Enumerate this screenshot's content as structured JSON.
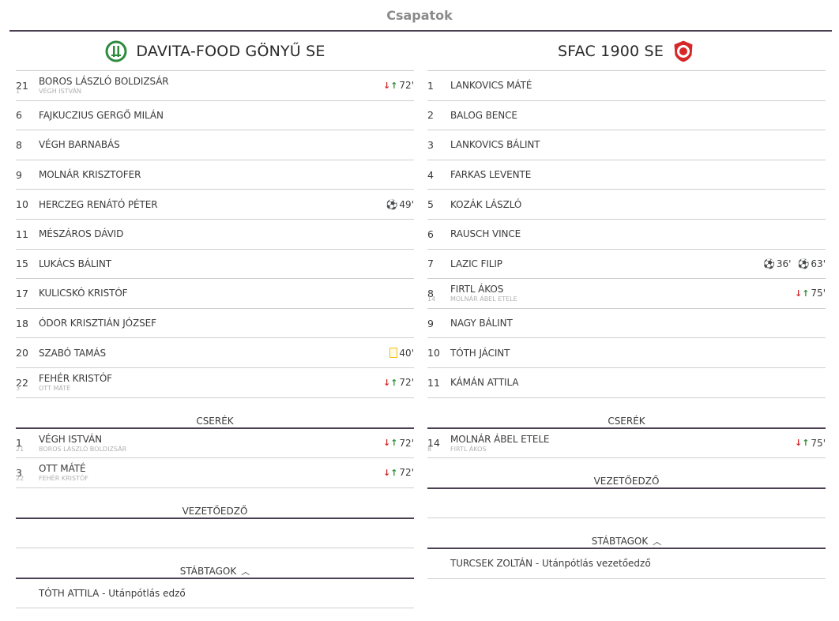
{
  "page_title": "Csapatok",
  "home": {
    "name": "DAVITA-FOOD GÖNYŰ SE",
    "lineup": [
      {
        "num": "21",
        "name": "BOROS LÁSZLÓ BOLDIZSÁR",
        "sub_num": "1",
        "sub_name": "VÉGH ISTVÁN",
        "events": [
          {
            "type": "sub",
            "minute": "72'"
          }
        ]
      },
      {
        "num": "6",
        "name": "FAJKUCZIUS GERGŐ MILÁN",
        "events": []
      },
      {
        "num": "8",
        "name": "VÉGH BARNABÁS",
        "events": []
      },
      {
        "num": "9",
        "name": "MOLNÁR KRISZTOFER",
        "events": []
      },
      {
        "num": "10",
        "name": "HERCZEG RENÁTÓ PÉTER",
        "events": [
          {
            "type": "goal",
            "minute": "49'"
          }
        ]
      },
      {
        "num": "11",
        "name": "MÉSZÁROS DÁVID",
        "events": []
      },
      {
        "num": "15",
        "name": "LUKÁCS BÁLINT",
        "events": []
      },
      {
        "num": "17",
        "name": "KULICSKÓ KRISTÓF",
        "events": []
      },
      {
        "num": "18",
        "name": "ÓDOR KRISZTIÁN JÓZSEF",
        "events": []
      },
      {
        "num": "20",
        "name": "SZABÓ TAMÁS",
        "events": [
          {
            "type": "yellow",
            "minute": "40'"
          }
        ]
      },
      {
        "num": "22",
        "name": "FEHÉR KRISTÓF",
        "sub_num": "3",
        "sub_name": "OTT MÁTÉ",
        "events": [
          {
            "type": "sub",
            "minute": "72'"
          }
        ]
      }
    ],
    "subs_label": "CSERÉK",
    "subs": [
      {
        "num": "1",
        "name": "VÉGH ISTVÁN",
        "sub_num": "21",
        "sub_name": "BOROS LÁSZLÓ BOLDIZSÁR",
        "events": [
          {
            "type": "sub",
            "minute": "72'"
          }
        ]
      },
      {
        "num": "3",
        "name": "OTT MÁTÉ",
        "sub_num": "22",
        "sub_name": "FEHÉR KRISTÓF",
        "events": [
          {
            "type": "sub",
            "minute": "72'"
          }
        ]
      }
    ],
    "coach_label": "VEZETŐEDZŐ",
    "coach": "",
    "staff_label": "STÁBTAGOK",
    "staff": [
      {
        "name": "TÓTH ATTILA",
        "role": "Utánpótlás edző"
      }
    ]
  },
  "away": {
    "name": "SFAC 1900 SE",
    "lineup": [
      {
        "num": "1",
        "name": "LANKOVICS MÁTÉ",
        "events": []
      },
      {
        "num": "2",
        "name": "BALOG BENCE",
        "events": []
      },
      {
        "num": "3",
        "name": "LANKOVICS BÁLINT",
        "events": []
      },
      {
        "num": "4",
        "name": "FARKAS LEVENTE",
        "events": []
      },
      {
        "num": "5",
        "name": "KOZÁK LÁSZLÓ",
        "events": []
      },
      {
        "num": "6",
        "name": "RAUSCH VINCE",
        "events": []
      },
      {
        "num": "7",
        "name": "LAZIC FILIP",
        "events": [
          {
            "type": "goal",
            "minute": "36'"
          },
          {
            "type": "goal",
            "minute": "63'"
          }
        ]
      },
      {
        "num": "8",
        "name": "FIRTL ÁKOS",
        "sub_num": "14",
        "sub_name": "MOLNÁR ÁBEL ETELE",
        "events": [
          {
            "type": "sub",
            "minute": "75'"
          }
        ]
      },
      {
        "num": "9",
        "name": "NAGY BÁLINT",
        "events": []
      },
      {
        "num": "10",
        "name": "TÓTH JÁCINT",
        "events": []
      },
      {
        "num": "11",
        "name": "KÁMÁN ATTILA",
        "events": []
      }
    ],
    "subs_label": "CSERÉK",
    "subs": [
      {
        "num": "14",
        "name": "MOLNÁR ÁBEL ETELE",
        "sub_num": "8",
        "sub_name": "FIRTL ÁKOS",
        "events": [
          {
            "type": "sub",
            "minute": "75'"
          }
        ]
      }
    ],
    "coach_label": "VEZETŐEDZŐ",
    "coach": "",
    "staff_label": "STÁBTAGOK",
    "staff": [
      {
        "name": "TURCSEK ZOLTÁN",
        "role": "Utánpótlás vezetőedző"
      }
    ]
  },
  "colors": {
    "accent_rule": "#4b3f52",
    "sub_out": "#d12b2b",
    "sub_in": "#2f8f3a",
    "yellow_card": "#f2c318"
  }
}
